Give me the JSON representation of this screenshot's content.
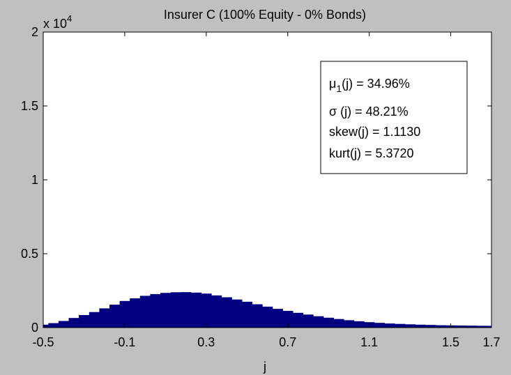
{
  "chart_data": {
    "type": "bar",
    "title": "Insurer C (100% Equity - 0% Bonds)",
    "xlabel": "j",
    "ylabel": "",
    "y_exponent_label": {
      "base": "x 10",
      "power": "4"
    },
    "xlim": [
      -0.5,
      1.7
    ],
    "ylim": [
      0,
      20000
    ],
    "xticks": [
      -0.5,
      -0.1,
      0.3,
      0.7,
      1.1,
      1.5,
      1.7
    ],
    "xtick_labels": [
      "-0.5",
      "-0.1",
      "0.3",
      "0.7",
      "1.1",
      "1.5",
      "1.7"
    ],
    "yticks": [
      0,
      5000,
      10000,
      15000,
      20000
    ],
    "ytick_labels": [
      "0",
      "0.5",
      "1",
      "1.5",
      "2"
    ],
    "grid": false,
    "bar_color": "#000080",
    "x": [
      -0.5,
      -0.45,
      -0.4,
      -0.35,
      -0.3,
      -0.25,
      -0.2,
      -0.15,
      -0.1,
      -0.05,
      0.0,
      0.05,
      0.1,
      0.15,
      0.2,
      0.25,
      0.3,
      0.35,
      0.4,
      0.45,
      0.5,
      0.55,
      0.6,
      0.65,
      0.7,
      0.75,
      0.8,
      0.85,
      0.9,
      0.95,
      1.0,
      1.05,
      1.1,
      1.15,
      1.2,
      1.25,
      1.3,
      1.35,
      1.4,
      1.45,
      1.5,
      1.55,
      1.6,
      1.65,
      1.7
    ],
    "values": [
      200,
      300,
      450,
      650,
      850,
      1050,
      1300,
      1550,
      1800,
      1980,
      2150,
      2270,
      2350,
      2390,
      2400,
      2370,
      2300,
      2180,
      2050,
      1900,
      1750,
      1580,
      1420,
      1270,
      1130,
      1000,
      880,
      770,
      670,
      580,
      500,
      430,
      370,
      320,
      280,
      250,
      220,
      200,
      180,
      160,
      150,
      140,
      130,
      125,
      120
    ],
    "annotations": [
      {
        "label": "μ",
        "sub": "1",
        "suffix": "(j) = 34.96%"
      },
      {
        "label": "σ",
        "sub": "",
        "suffix": " (j) = 48.21%"
      },
      {
        "label": "",
        "sub": "",
        "suffix": "skew(j) = 1.1130"
      },
      {
        "label": "",
        "sub": "",
        "suffix": "kurt(j) = 5.3720"
      }
    ]
  }
}
